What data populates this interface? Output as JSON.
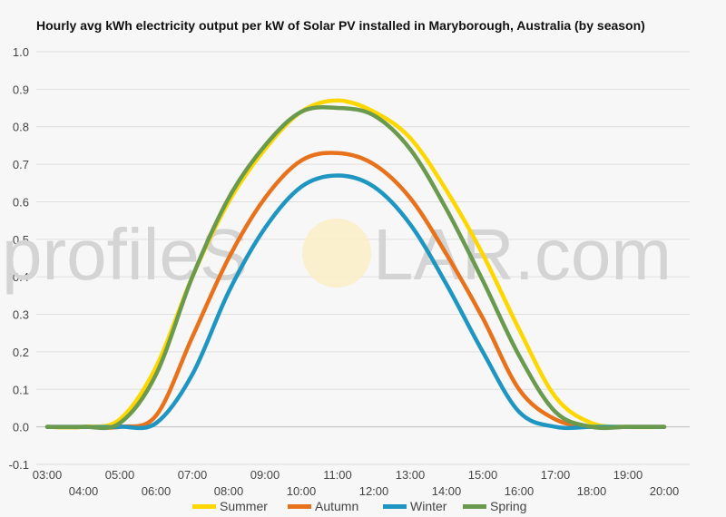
{
  "chart_data": {
    "type": "line",
    "title": "Hourly avg kWh electricity output per kW of Solar PV installed in Maryborough, Australia (by season)",
    "xlabel": "",
    "ylabel": "",
    "ylim": [
      -0.1,
      1.0
    ],
    "yticks": [
      "-0.1",
      "0.0",
      "0.1",
      "0.2",
      "0.3",
      "0.4",
      "0.5",
      "0.6",
      "0.7",
      "0.8",
      "0.9",
      "1.0"
    ],
    "xticks_upper": [
      "03:00",
      "05:00",
      "07:00",
      "09:00",
      "11:00",
      "13:00",
      "15:00",
      "17:00",
      "19:00"
    ],
    "xticks_lower": [
      "04:00",
      "06:00",
      "08:00",
      "10:00",
      "12:00",
      "14:00",
      "16:00",
      "18:00",
      "20:00"
    ],
    "grid": true,
    "legend_position": "bottom",
    "x": [
      3,
      4,
      5,
      6,
      7,
      8,
      9,
      10,
      11,
      12,
      13,
      14,
      15,
      16,
      17,
      18,
      19,
      20
    ],
    "series": [
      {
        "name": "Summer",
        "color": "#ffd700",
        "values": [
          0,
          0,
          0.02,
          0.16,
          0.4,
          0.6,
          0.74,
          0.84,
          0.87,
          0.84,
          0.77,
          0.63,
          0.46,
          0.26,
          0.08,
          0.01,
          0,
          0
        ]
      },
      {
        "name": "Autumn",
        "color": "#e8711c",
        "values": [
          0,
          0,
          0,
          0.03,
          0.24,
          0.45,
          0.61,
          0.71,
          0.73,
          0.7,
          0.61,
          0.46,
          0.29,
          0.1,
          0.02,
          0,
          0,
          0
        ]
      },
      {
        "name": "Winter",
        "color": "#1f96c2",
        "values": [
          0,
          0,
          0,
          0.01,
          0.14,
          0.36,
          0.53,
          0.64,
          0.67,
          0.64,
          0.54,
          0.38,
          0.2,
          0.04,
          0,
          0,
          0,
          0
        ]
      },
      {
        "name": "Spring",
        "color": "#6a9a4d",
        "values": [
          0,
          0,
          0.01,
          0.14,
          0.4,
          0.61,
          0.75,
          0.84,
          0.85,
          0.83,
          0.74,
          0.58,
          0.39,
          0.19,
          0.04,
          0,
          0,
          0
        ]
      }
    ]
  },
  "watermark": {
    "before": "profileS",
    "after": "LAR.com"
  }
}
